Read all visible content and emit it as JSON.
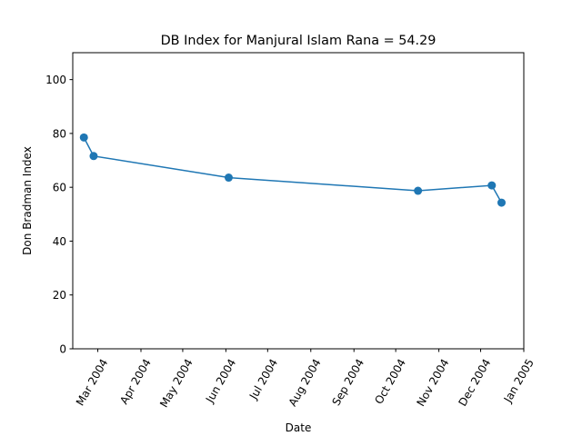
{
  "chart_data": {
    "type": "line",
    "title": "DB Index for Manjural Islam Rana = 54.29",
    "xlabel": "Date",
    "ylabel": "Don Bradman Index",
    "xlim": [
      "2004-02-12",
      "2005-01-01"
    ],
    "ylim": [
      0,
      110
    ],
    "grid": false,
    "x_ticks": [
      {
        "date": "2004-03-01",
        "label": "Mar 2004"
      },
      {
        "date": "2004-04-01",
        "label": "Apr 2004"
      },
      {
        "date": "2004-05-01",
        "label": "May 2004"
      },
      {
        "date": "2004-06-01",
        "label": "Jun 2004"
      },
      {
        "date": "2004-07-01",
        "label": "Jul 2004"
      },
      {
        "date": "2004-08-01",
        "label": "Aug 2004"
      },
      {
        "date": "2004-09-01",
        "label": "Sep 2004"
      },
      {
        "date": "2004-10-01",
        "label": "Oct 2004"
      },
      {
        "date": "2004-11-01",
        "label": "Nov 2004"
      },
      {
        "date": "2004-12-01",
        "label": "Dec 2004"
      },
      {
        "date": "2005-01-01",
        "label": "Jan 2005"
      }
    ],
    "y_ticks": [
      0,
      20,
      40,
      60,
      80,
      100
    ],
    "series": [
      {
        "color": "#1f77b4",
        "points": [
          {
            "x": "2004-02-20",
            "y": 78.5
          },
          {
            "x": "2004-02-27",
            "y": 71.6
          },
          {
            "x": "2004-06-03",
            "y": 63.6
          },
          {
            "x": "2004-10-17",
            "y": 58.7
          },
          {
            "x": "2004-12-09",
            "y": 60.7
          },
          {
            "x": "2004-12-16",
            "y": 54.29
          }
        ]
      }
    ]
  }
}
